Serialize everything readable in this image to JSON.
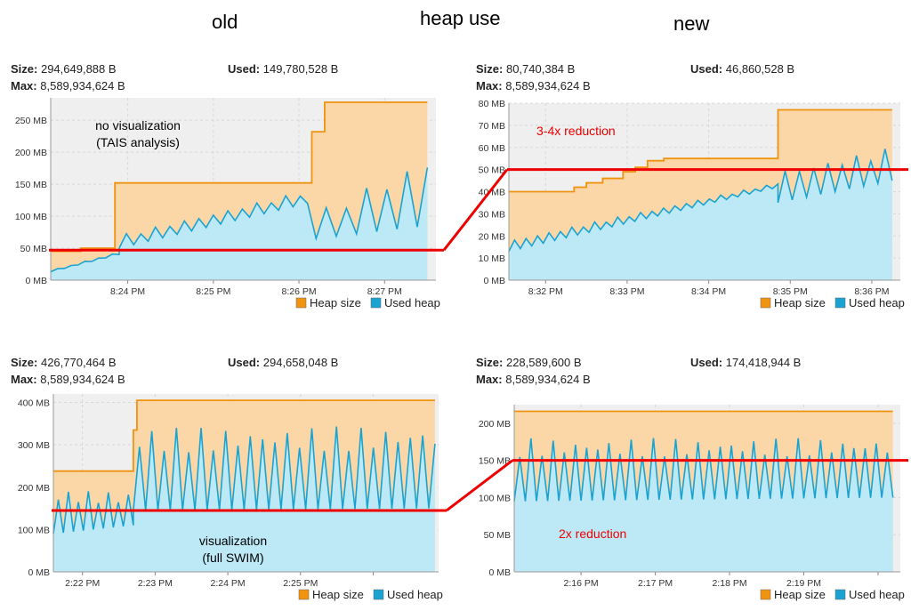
{
  "header": {
    "left": "old",
    "title": "heap use",
    "right": "new"
  },
  "colors": {
    "heap_line": "#f0930f",
    "heap_fill": "#fbd7a8",
    "used_line": "#1aa3d2",
    "used_fill": "#bde9f7",
    "plot_bg": "#efefef",
    "red": "#ee0000"
  },
  "panels": [
    {
      "size_label": "Size:",
      "size_value": "294,649,888 B",
      "used_label": "Used:",
      "used_value": "149,780,528 B",
      "max_label": "Max:",
      "max_value": "8,589,934,624 B"
    },
    {
      "size_label": "Size:",
      "size_value": "80,740,384 B",
      "used_label": "Used:",
      "used_value": "46,860,528 B",
      "max_label": "Max:",
      "max_value": "8,589,934,624 B"
    },
    {
      "size_label": "Size:",
      "size_value": "426,770,464 B",
      "used_label": "Used:",
      "used_value": "294,658,048 B",
      "max_label": "Max:",
      "max_value": "8,589,934,624 B"
    },
    {
      "size_label": "Size:",
      "size_value": "228,589,600 B",
      "used_label": "Used:",
      "used_value": "174,418,944 B",
      "max_label": "Max:",
      "max_value": "8,589,934,624 B"
    }
  ],
  "chart_data": [
    {
      "type": "area",
      "ylim": [
        0,
        285
      ],
      "y_ticks": [
        0,
        50,
        100,
        150,
        200,
        250
      ],
      "y_tick_labels": [
        "0 MB",
        "50 MB",
        "100 MB",
        "150 MB",
        "200 MB",
        "250 MB"
      ],
      "xlim": [
        0,
        4.5
      ],
      "x_ticks": [
        0.9,
        1.9,
        2.9,
        3.9
      ],
      "x_tick_labels": [
        "8:24 PM",
        "8:25 PM",
        "8:26 PM",
        "8:27 PM"
      ],
      "heap_size": [
        [
          0,
          45
        ],
        [
          0.35,
          45
        ],
        [
          0.35,
          50
        ],
        [
          0.75,
          50
        ],
        [
          0.75,
          152
        ],
        [
          3.05,
          152
        ],
        [
          3.05,
          232
        ],
        [
          3.2,
          232
        ],
        [
          3.2,
          278
        ],
        [
          4.4,
          278
        ]
      ],
      "used": {
        "segments": [
          {
            "x0": 0.0,
            "x1": 0.8,
            "lo0": 13,
            "lo1": 40,
            "hi0": 15,
            "hi1": 44,
            "period": 0.08
          },
          {
            "x0": 0.8,
            "x1": 3.0,
            "lo0": 50,
            "lo1": 120,
            "hi0": 70,
            "hi1": 140,
            "period": 0.085
          },
          {
            "x0": 3.1,
            "x1": 4.4,
            "lo0": 65,
            "lo1": 85,
            "hi0": 105,
            "hi1": 195,
            "period": 0.12
          }
        ]
      },
      "red_line_y": 47,
      "annotation": {
        "lines": [
          "no visualization",
          "(TAIS analysis)"
        ],
        "color": "#000000"
      },
      "legend": [
        "Heap size",
        "Used heap"
      ]
    },
    {
      "type": "area",
      "ylim": [
        0,
        80
      ],
      "y_ticks": [
        0,
        10,
        20,
        30,
        40,
        50,
        60,
        70,
        80
      ],
      "y_tick_labels": [
        "0 MB",
        "10 MB",
        "20 MB",
        "30 MB",
        "40 MB",
        "50 MB",
        "60 MB",
        "70 MB",
        "80 MB"
      ],
      "xlim": [
        0,
        4.8
      ],
      "x_ticks": [
        0.45,
        1.45,
        2.45,
        3.45,
        4.45
      ],
      "x_tick_labels": [
        "8:32 PM",
        "8:33 PM",
        "8:34 PM",
        "8:35 PM",
        "8:36 PM"
      ],
      "heap_size": [
        [
          0,
          40
        ],
        [
          0.8,
          40
        ],
        [
          0.8,
          42
        ],
        [
          0.95,
          42
        ],
        [
          0.95,
          44
        ],
        [
          1.15,
          44
        ],
        [
          1.15,
          46
        ],
        [
          1.4,
          46
        ],
        [
          1.4,
          49
        ],
        [
          1.55,
          49
        ],
        [
          1.55,
          51
        ],
        [
          1.7,
          51
        ],
        [
          1.7,
          54
        ],
        [
          1.9,
          54
        ],
        [
          1.9,
          55
        ],
        [
          3.3,
          55
        ],
        [
          3.3,
          77
        ],
        [
          4.7,
          77
        ]
      ],
      "used": {
        "segments": [
          {
            "x0": 0.0,
            "x1": 3.3,
            "lo0": 13,
            "lo1": 42,
            "hi0": 18,
            "hi1": 44,
            "period": 0.07
          },
          {
            "x0": 3.3,
            "x1": 4.7,
            "lo0": 35,
            "lo1": 45,
            "hi0": 50,
            "hi1": 60,
            "period": 0.085
          }
        ]
      },
      "red_line_y": 50,
      "annotation": {
        "lines": [
          "3-4x reduction"
        ],
        "color": "#ee0000"
      },
      "legend": [
        "Heap size",
        "Used heap"
      ]
    },
    {
      "type": "area",
      "ylim": [
        0,
        420
      ],
      "y_ticks": [
        0,
        100,
        200,
        300,
        400
      ],
      "y_tick_labels": [
        "0 MB",
        "100 MB",
        "200 MB",
        "300 MB",
        "400 MB"
      ],
      "xlim": [
        0,
        5.3
      ],
      "x_ticks": [
        0.4,
        1.4,
        2.4,
        3.4,
        4.4
      ],
      "x_tick_labels": [
        "2:22 PM",
        "2:23 PM",
        "2:24 PM",
        "2:25 PM",
        ""
      ],
      "heap_size": [
        [
          0,
          238
        ],
        [
          1.1,
          238
        ],
        [
          1.1,
          335
        ],
        [
          1.15,
          335
        ],
        [
          1.15,
          405
        ],
        [
          5.25,
          405
        ]
      ],
      "used": {
        "segments": [
          {
            "x0": 0.0,
            "x1": 1.1,
            "lo0": 90,
            "lo1": 110,
            "hi0": 195,
            "hi1": 185,
            "period": 0.07
          },
          {
            "x0": 1.1,
            "x1": 5.25,
            "lo0": 145,
            "lo1": 150,
            "hi0": 340,
            "hi1": 345,
            "period": 0.085
          }
        ]
      },
      "red_line_y": 145,
      "annotation": {
        "lines": [
          "visualization",
          "(full SWIM)"
        ],
        "color": "#000000"
      },
      "legend": [
        "Heap size",
        "Used heap"
      ]
    },
    {
      "type": "area",
      "ylim": [
        0,
        225
      ],
      "y_ticks": [
        0,
        50,
        100,
        150,
        200
      ],
      "y_tick_labels": [
        "0 MB",
        "50 MB",
        "100 MB",
        "150 MB",
        "200 MB"
      ],
      "xlim": [
        0,
        5.2
      ],
      "x_ticks": [
        0.9,
        1.9,
        2.9,
        3.9,
        4.9
      ],
      "x_tick_labels": [
        "2:16 PM",
        "2:17 PM",
        "2:18 PM",
        "2:19 PM",
        ""
      ],
      "heap_size": [
        [
          0,
          216
        ],
        [
          5.1,
          216
        ]
      ],
      "used": {
        "segments": [
          {
            "x0": 0.0,
            "x1": 5.1,
            "lo0": 95,
            "lo1": 100,
            "hi0": 180,
            "hi1": 180,
            "period": 0.075
          }
        ]
      },
      "red_line_y": 150,
      "annotation": {
        "lines": [
          "2x reduction"
        ],
        "color": "#ee0000"
      },
      "legend": [
        "Heap size",
        "Used heap"
      ]
    }
  ],
  "connectors": [
    "left-top to right-top red line",
    "left-bottom to right-bottom red line"
  ]
}
